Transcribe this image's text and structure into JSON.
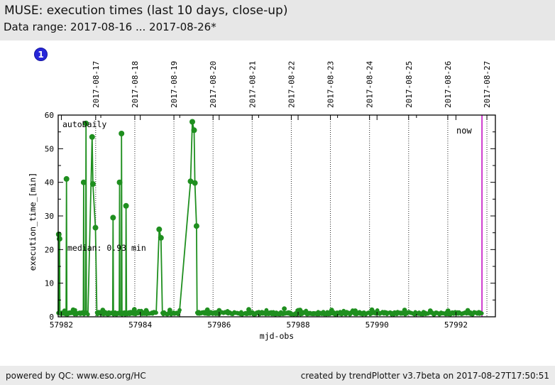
{
  "header": {
    "title": "MUSE: execution times (last 10 days, close-up)",
    "subtitle": "Data range: 2017-08-16 ... 2017-08-26*"
  },
  "badge": {
    "label": "1"
  },
  "footer": {
    "left": "powered by QC: www.eso.org/HC",
    "right": "created by trendPlotter v3.7beta on 2017-08-27T17:50:51"
  },
  "colors": {
    "series_green": "#1f8f1f",
    "now_magenta": "#c000c0",
    "badge_blue": "#2626d8",
    "header_bg": "#e7e7e7",
    "footer_bg": "#ebebeb",
    "axis_black": "#000000"
  },
  "chart_data": {
    "type": "line",
    "title": "MUSE: execution times (last 10 days, close-up)",
    "series_name": "execution_time",
    "xlabel": "mjd-obs",
    "ylabel": "execution_time_[min]",
    "xlim": [
      57981.92,
      57993.0
    ],
    "ylim": [
      0,
      60
    ],
    "grid": "vertical-dotted-on-top-axis-dates",
    "legend_position": "none",
    "x_major_ticks": [
      57982,
      57984,
      57986,
      57988,
      57990,
      57992
    ],
    "x_minor_ticks": [
      57983,
      57985,
      57987,
      57989,
      57991,
      57993
    ],
    "y_major_ticks": [
      0,
      10,
      20,
      30,
      40,
      50,
      60
    ],
    "y_minor_ticks": [
      5,
      15,
      25,
      35,
      45,
      55
    ],
    "top_axis_dates": [
      "2017-08-17",
      "2017-08-18",
      "2017-08-19",
      "2017-08-20",
      "2017-08-21",
      "2017-08-22",
      "2017-08-23",
      "2017-08-24",
      "2017-08-25",
      "2017-08-26",
      "2017-08-27"
    ],
    "spike_points": [
      [
        57981.935,
        24.5
      ],
      [
        57981.955,
        23.2
      ],
      [
        57982.13,
        41.0
      ],
      [
        57982.565,
        40.0
      ],
      [
        57982.625,
        57.5
      ],
      [
        57982.78,
        53.5
      ],
      [
        57982.8,
        39.5
      ],
      [
        57982.865,
        26.5
      ],
      [
        57983.31,
        29.5
      ],
      [
        57983.475,
        40.0
      ],
      [
        57983.525,
        54.5
      ],
      [
        57983.64,
        33.0
      ],
      [
        57984.48,
        26.0
      ],
      [
        57984.525,
        23.5
      ],
      [
        57985.275,
        40.3
      ],
      [
        57985.32,
        58.0
      ],
      [
        57985.365,
        55.5
      ],
      [
        57985.385,
        39.8
      ],
      [
        57985.425,
        27.0
      ]
    ],
    "small_bumps": [
      [
        57982.3,
        2.1
      ],
      [
        57983.05,
        2.0
      ],
      [
        57983.85,
        2.2
      ],
      [
        57984.15,
        1.9
      ],
      [
        57984.75,
        2.0
      ],
      [
        57985.7,
        2.1
      ],
      [
        57986.0,
        1.9
      ],
      [
        57986.75,
        2.2
      ],
      [
        57987.65,
        2.4
      ],
      [
        57988.05,
        2.0
      ],
      [
        57988.85,
        2.0
      ],
      [
        57989.45,
        1.8
      ],
      [
        57989.87,
        2.1
      ],
      [
        57990.7,
        2.0
      ],
      [
        57991.35,
        1.8
      ],
      [
        57991.8,
        1.8
      ],
      [
        57992.3,
        1.9
      ]
    ],
    "baseline_segments": [
      [
        57981.92,
        57982.69
      ],
      [
        57982.9,
        57984.41
      ],
      [
        57984.56,
        57985.01
      ],
      [
        57985.44,
        57992.66
      ]
    ],
    "baseline_median_min": 0.93,
    "now_mjd": 57992.66,
    "annotations": {
      "dataset_label": "autoDaily",
      "median_label": "median: 0.93 min",
      "now_label": "now"
    }
  }
}
